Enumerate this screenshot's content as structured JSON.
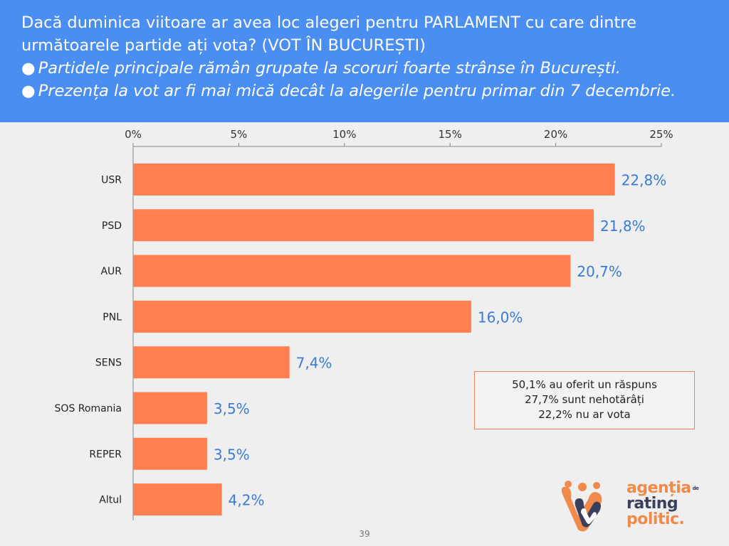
{
  "header": {
    "question": "Dacă duminica viitoare ar avea loc alegeri pentru PARLAMENT cu care dintre următoarele partide ați vota? (VOT ÎN BUCUREȘTI)",
    "bullets": [
      "Partidele principale rămân grupate la scoruri foarte strânse în București.",
      "Prezența la vot ar fi mai mică decât la alegerile pentru primar din 7 decembrie."
    ]
  },
  "chart_data": {
    "type": "bar",
    "orientation": "horizontal",
    "categories": [
      "USR",
      "PSD",
      "AUR",
      "PNL",
      "SENS",
      "SOS Romania",
      "REPER",
      "Altul"
    ],
    "values": [
      22.8,
      21.8,
      20.7,
      16.0,
      7.4,
      3.5,
      3.5,
      4.2
    ],
    "value_labels": [
      "22,8%",
      "21,8%",
      "20,7%",
      "16,0%",
      "7,4%",
      "3,5%",
      "3,5%",
      "4,2%"
    ],
    "xlim": [
      0,
      25
    ],
    "xticks": [
      0,
      5,
      10,
      15,
      20,
      25
    ],
    "xtick_labels": [
      "0%",
      "5%",
      "10%",
      "15%",
      "20%",
      "25%"
    ],
    "axis_position": "top",
    "grid": false,
    "colors": {
      "bar": "#ff7f50",
      "value_label": "#3a7bd5",
      "axis": "#888888"
    }
  },
  "note": {
    "lines": [
      "50,1% au oferit un răspuns",
      "27,7% sunt nehotărâți",
      "22,2% nu ar vota"
    ]
  },
  "footer": {
    "page_number": "39",
    "logo_lines": [
      "agenția",
      "rating",
      "politic."
    ],
    "logo_de": "de"
  }
}
